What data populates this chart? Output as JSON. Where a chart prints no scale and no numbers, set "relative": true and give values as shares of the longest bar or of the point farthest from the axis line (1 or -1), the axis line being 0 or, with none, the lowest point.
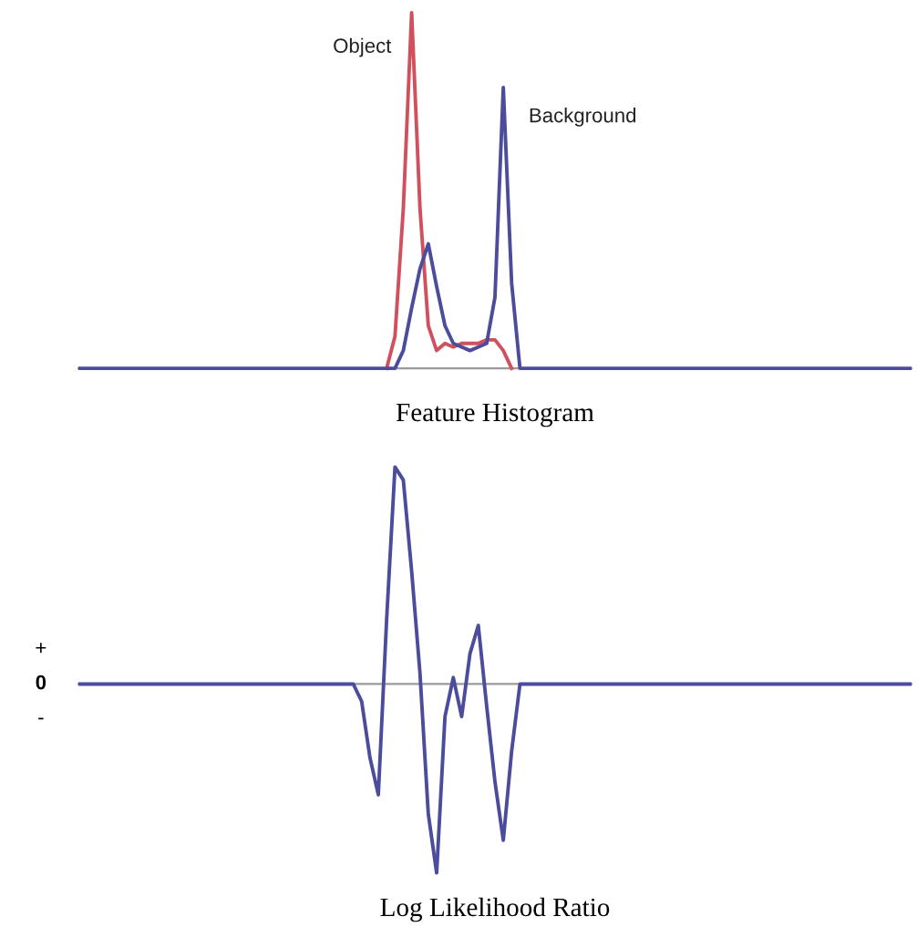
{
  "chart_data": [
    {
      "type": "line",
      "relative": true,
      "xlabel": "Feature Histogram",
      "categories": [
        null,
        null,
        null,
        null,
        null,
        null,
        null,
        null,
        null,
        null,
        null,
        null,
        null,
        null,
        null,
        null,
        null,
        null,
        null,
        null,
        null,
        null,
        null,
        null,
        null,
        null,
        null,
        null,
        null,
        null,
        null,
        null,
        null,
        null,
        null,
        null,
        null,
        null,
        null,
        null,
        null,
        null,
        null,
        null,
        null,
        null,
        null,
        null,
        null,
        null,
        null,
        null,
        null,
        null,
        null,
        null,
        null,
        null,
        null,
        null,
        null,
        null,
        null,
        null,
        null,
        null,
        null,
        null,
        null,
        null,
        null,
        null,
        null,
        null,
        null,
        null,
        null,
        null,
        null,
        null,
        null,
        null,
        null,
        null,
        null,
        null,
        null,
        null,
        null,
        null,
        null,
        null,
        null,
        null,
        null,
        null,
        null,
        null,
        null,
        null,
        null
      ],
      "series": [
        {
          "name": "Object",
          "color": "#d0505e",
          "values": [
            null,
            null,
            null,
            null,
            null,
            null,
            null,
            null,
            null,
            null,
            null,
            null,
            null,
            null,
            null,
            null,
            null,
            null,
            null,
            null,
            null,
            null,
            null,
            null,
            null,
            null,
            null,
            null,
            null,
            null,
            null,
            null,
            null,
            null,
            null,
            null,
            null,
            0,
            0.09,
            0.45,
            1,
            0.45,
            0.12,
            0.05,
            0.07,
            0.06,
            0.07,
            0.07,
            0.07,
            0.08,
            0.08,
            0.05,
            0,
            null,
            null,
            null,
            null,
            null,
            null,
            null,
            null,
            null,
            null,
            null,
            null,
            null,
            null,
            null,
            null,
            null,
            null,
            null,
            null,
            null,
            null,
            null,
            null,
            null,
            null,
            null,
            null,
            null,
            null,
            null,
            null,
            null,
            null,
            null,
            null,
            null,
            null,
            null,
            null,
            null,
            null,
            null,
            null,
            null,
            null,
            null,
            null
          ]
        },
        {
          "name": "Background",
          "color": "#4c4c9c",
          "values": [
            0,
            0,
            0,
            0,
            0,
            0,
            0,
            0,
            0,
            0,
            0,
            0,
            0,
            0,
            0,
            0,
            0,
            0,
            0,
            0,
            0,
            0,
            0,
            0,
            0,
            0,
            0,
            0,
            0,
            0,
            0,
            0,
            0,
            0,
            0,
            0,
            0,
            0,
            0,
            0.05,
            0.17,
            0.28,
            0.35,
            0.23,
            0.12,
            0.07,
            0.06,
            0.05,
            0.06,
            0.07,
            0.2,
            0.79,
            0.24,
            0,
            0,
            0,
            0,
            0,
            0,
            0,
            0,
            0,
            0,
            0,
            0,
            0,
            0,
            0,
            0,
            0,
            0,
            0,
            0,
            0,
            0,
            0,
            0,
            0,
            0,
            0,
            0,
            0,
            0,
            0,
            0,
            0,
            0,
            0,
            0,
            0,
            0,
            0,
            0,
            0,
            0,
            0,
            0,
            0,
            0,
            0,
            0
          ]
        }
      ]
    },
    {
      "type": "line",
      "relative": true,
      "xlabel": "Log Likelihood Ratio",
      "annotations": [
        "+",
        "0",
        "-"
      ],
      "categories": [
        null,
        null,
        null,
        null,
        null,
        null,
        null,
        null,
        null,
        null,
        null,
        null,
        null,
        null,
        null,
        null,
        null,
        null,
        null,
        null,
        null,
        null,
        null,
        null,
        null,
        null,
        null,
        null,
        null,
        null,
        null,
        null,
        null,
        null,
        null,
        null,
        null,
        null,
        null,
        null,
        null,
        null,
        null,
        null,
        null,
        null,
        null,
        null,
        null,
        null,
        null,
        null,
        null,
        null,
        null,
        null,
        null,
        null,
        null,
        null,
        null,
        null,
        null,
        null,
        null,
        null,
        null,
        null,
        null,
        null,
        null,
        null,
        null,
        null,
        null,
        null,
        null,
        null,
        null,
        null,
        null,
        null,
        null,
        null,
        null,
        null,
        null,
        null,
        null,
        null,
        null,
        null,
        null,
        null,
        null,
        null,
        null,
        null,
        null,
        null,
        null
      ],
      "series": [
        {
          "color": "#4c4c9c",
          "values": [
            0,
            0,
            0,
            0,
            0,
            0,
            0,
            0,
            0,
            0,
            0,
            0,
            0,
            0,
            0,
            0,
            0,
            0,
            0,
            0,
            0,
            0,
            0,
            0,
            0,
            0,
            0,
            0,
            0,
            0,
            0,
            0,
            0,
            0,
            -0.08,
            -0.34,
            -0.51,
            0.3,
            1,
            0.94,
            0.52,
            0.05,
            -0.6,
            -0.87,
            -0.15,
            0.03,
            -0.15,
            0.14,
            0.27,
            -0.1,
            -0.45,
            -0.72,
            -0.31,
            0,
            0,
            0,
            0,
            0,
            0,
            0,
            0,
            0,
            0,
            0,
            0,
            0,
            0,
            0,
            0,
            0,
            0,
            0,
            0,
            0,
            0,
            0,
            0,
            0,
            0,
            0,
            0,
            0,
            0,
            0,
            0,
            0,
            0,
            0,
            0,
            0,
            0,
            0,
            0,
            0,
            0,
            0,
            0,
            0,
            0,
            0,
            0
          ]
        }
      ]
    }
  ]
}
